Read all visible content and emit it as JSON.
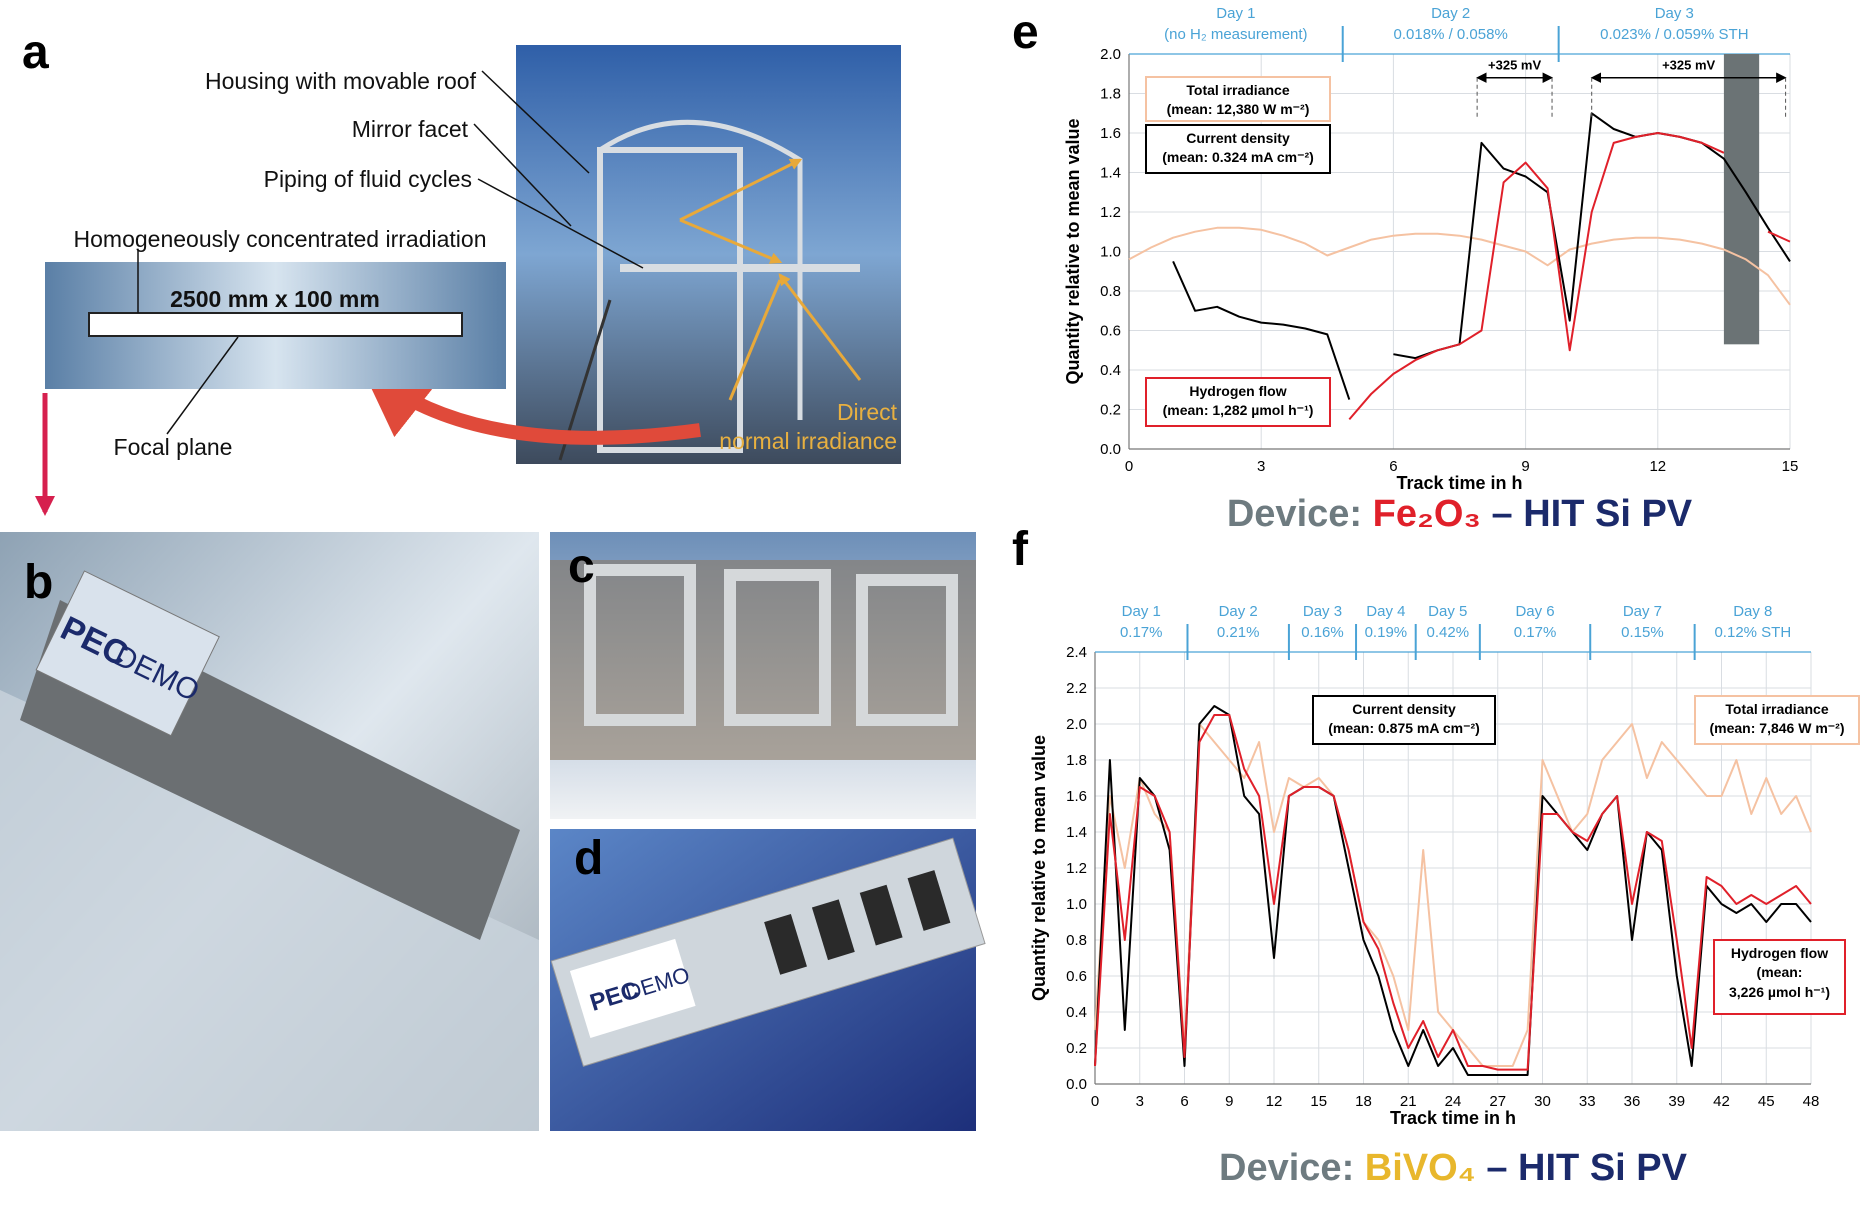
{
  "panels": {
    "a": {
      "label": "a",
      "housing": "Housing with movable roof",
      "mirror": "Mirror facet",
      "piping": "Piping of fluid cycles",
      "irradiation": "Homogeneously concentrated irradiation",
      "size": "2500 mm x 100 mm",
      "focal": "Focal plane",
      "direct": "Direct",
      "normal": "normal irradiance"
    },
    "b": {
      "label": "b",
      "sign": [
        "PEC",
        "DEMO"
      ]
    },
    "c": {
      "label": "c"
    },
    "d": {
      "label": "d",
      "sign": [
        "PEC",
        "DEMO"
      ]
    },
    "e": {
      "label": "e"
    },
    "f": {
      "label": "f"
    }
  },
  "chart_data": [
    {
      "type": "line",
      "x_label": "Track time in h",
      "y_label": "Quantity relative to mean value",
      "xlim": [
        0,
        15
      ],
      "xticks": [
        0,
        3,
        6,
        9,
        12,
        15
      ],
      "ylim": [
        0,
        2.0
      ],
      "yticks": [
        {
          "value": 0,
          "label": "0.0"
        },
        {
          "value": 0.2,
          "label": "0.2"
        },
        {
          "value": 0.4,
          "label": "0.4"
        },
        {
          "value": 0.6,
          "label": "0.6"
        },
        {
          "value": 0.8,
          "label": "0.8"
        },
        {
          "value": 1.0,
          "label": "1.0"
        },
        {
          "value": 1.2,
          "label": "1.2"
        },
        {
          "value": 1.4,
          "label": "1.4"
        },
        {
          "value": 1.6,
          "label": "1.6"
        },
        {
          "value": 1.8,
          "label": "1.8"
        },
        {
          "value": 2.0,
          "label": "2.0"
        }
      ],
      "grid": true,
      "day_color": "#4aa3d6",
      "day_boundaries": [
        4.85,
        9.75
      ],
      "days": [
        {
          "label": "Day 1",
          "note": "(no H₂ measurement)"
        },
        {
          "label": "Day 2",
          "note": "0.018% / 0.058%"
        },
        {
          "label": "Day 3",
          "note": "0.023% / 0.059% STH"
        }
      ],
      "arrows": [
        {
          "label": "+325 mV",
          "x": [
            7.9,
            9.6
          ],
          "y": 1.88
        },
        {
          "label": "+325 mV",
          "x": [
            10.5,
            14.9
          ],
          "y": 1.88
        }
      ],
      "excluded": {
        "x": [
          13.5,
          14.3
        ],
        "y": [
          0.53,
          2.0
        ],
        "color": "#6b7375"
      },
      "device_label": [
        {
          "text": "Device: ",
          "color": "#6e7b80"
        },
        {
          "text": "Fe₂O₃",
          "color": "#e0202a"
        },
        {
          "text": " – HIT Si PV",
          "color": "#1b2a6b"
        }
      ],
      "x": [
        0,
        0.5,
        1,
        1.5,
        2,
        2.5,
        3,
        3.5,
        4,
        4.5,
        5,
        5.5,
        6,
        6.5,
        7,
        7.5,
        8,
        8.5,
        9,
        9.5,
        10,
        10.5,
        11,
        11.5,
        12,
        12.5,
        13,
        13.5,
        14,
        14.5,
        15
      ],
      "series": [
        {
          "name": "Total irradiance",
          "legend_lines": [
            "(mean: 12,380 W m⁻²)"
          ],
          "color": "#f5c2a2",
          "values": [
            0.96,
            1.02,
            1.07,
            1.1,
            1.12,
            1.12,
            1.11,
            1.08,
            1.04,
            0.98,
            1.02,
            1.06,
            1.08,
            1.09,
            1.09,
            1.08,
            1.06,
            1.03,
            1.0,
            0.93,
            1.01,
            1.04,
            1.06,
            1.07,
            1.07,
            1.06,
            1.04,
            1.01,
            0.96,
            0.88,
            0.73
          ]
        },
        {
          "name": "Current density",
          "legend_lines": [
            "(mean: 0.324 mA cm⁻²)"
          ],
          "color": "#000000",
          "values": [
            null,
            null,
            0.95,
            0.7,
            0.72,
            0.67,
            0.64,
            0.63,
            0.61,
            0.58,
            0.25,
            null,
            0.48,
            0.46,
            0.5,
            0.53,
            1.55,
            1.42,
            1.38,
            1.3,
            0.65,
            1.7,
            1.62,
            1.58,
            1.6,
            1.58,
            1.55,
            1.47,
            1.3,
            1.12,
            0.95
          ]
        },
        {
          "name": "Hydrogen flow",
          "legend_lines": [
            "(mean: 1,282 µmol h⁻¹)"
          ],
          "color": "#e0202a",
          "values": [
            null,
            null,
            null,
            null,
            null,
            null,
            null,
            null,
            null,
            null,
            0.15,
            0.28,
            0.38,
            0.45,
            0.5,
            0.53,
            0.6,
            1.35,
            1.45,
            1.32,
            0.5,
            1.2,
            1.55,
            1.58,
            1.6,
            1.58,
            1.55,
            1.5,
            null,
            1.1,
            1.05
          ]
        }
      ]
    },
    {
      "type": "line",
      "x_label": "Track time in h",
      "y_label": "Quantity relative to mean value",
      "xlim": [
        0,
        48
      ],
      "xticks": [
        0,
        3,
        6,
        9,
        12,
        15,
        18,
        21,
        24,
        27,
        30,
        33,
        36,
        39,
        42,
        45,
        48
      ],
      "ylim": [
        0,
        2.4
      ],
      "yticks": [
        {
          "value": 0,
          "label": "0.0"
        },
        {
          "value": 0.2,
          "label": "0.2"
        },
        {
          "value": 0.4,
          "label": "0.4"
        },
        {
          "value": 0.6,
          "label": "0.6"
        },
        {
          "value": 0.8,
          "label": "0.8"
        },
        {
          "value": 1.0,
          "label": "1.0"
        },
        {
          "value": 1.2,
          "label": "1.2"
        },
        {
          "value": 1.4,
          "label": "1.4"
        },
        {
          "value": 1.6,
          "label": "1.6"
        },
        {
          "value": 1.8,
          "label": "1.8"
        },
        {
          "value": 2.0,
          "label": "2.0"
        },
        {
          "value": 2.2,
          "label": "2.2"
        },
        {
          "value": 2.4,
          "label": "2.4"
        }
      ],
      "grid": true,
      "day_color": "#4aa3d6",
      "day_boundaries": [
        6.2,
        13,
        17.5,
        21.5,
        25.8,
        33.2,
        40.2
      ],
      "days": [
        {
          "label": "Day 1",
          "note": "0.17%"
        },
        {
          "label": "Day 2",
          "note": "0.21%"
        },
        {
          "label": "Day 3",
          "note": "0.16%"
        },
        {
          "label": "Day 4",
          "note": "0.19%"
        },
        {
          "label": "Day 5",
          "note": "0.42%"
        },
        {
          "label": "Day 6",
          "note": "0.17%"
        },
        {
          "label": "Day 7",
          "note": "0.15%"
        },
        {
          "label": "Day 8",
          "note": "0.12% STH"
        }
      ],
      "device_label": [
        {
          "text": "Device: ",
          "color": "#6e7b80"
        },
        {
          "text": "BiVO₄",
          "color": "#e8b72c"
        },
        {
          "text": " – HIT Si PV",
          "color": "#1b2a6b"
        }
      ],
      "x": [
        0,
        1,
        2,
        3,
        4,
        5,
        6,
        7,
        8,
        9,
        10,
        11,
        12,
        13,
        14,
        15,
        16,
        17,
        18,
        19,
        20,
        21,
        22,
        23,
        24,
        25,
        26,
        27,
        28,
        29,
        30,
        31,
        32,
        33,
        34,
        35,
        36,
        37,
        38,
        39,
        40,
        41,
        42,
        43,
        44,
        45,
        46,
        47,
        48
      ],
      "series": [
        {
          "name": "Total irradiance",
          "legend_lines": [
            "(mean: 7,846 W m⁻²)"
          ],
          "color": "#f5c2a2",
          "values": [
            0.3,
            1.6,
            1.2,
            1.7,
            1.5,
            1.4,
            0.2,
            2.0,
            1.9,
            1.8,
            1.7,
            1.9,
            1.4,
            1.7,
            1.65,
            1.7,
            1.6,
            1.3,
            0.9,
            0.8,
            0.6,
            0.3,
            1.3,
            0.4,
            0.3,
            0.2,
            0.1,
            0.1,
            0.1,
            0.3,
            1.8,
            1.6,
            1.4,
            1.5,
            1.8,
            1.9,
            2.0,
            1.7,
            1.9,
            1.8,
            1.7,
            1.6,
            1.6,
            1.8,
            1.5,
            1.7,
            1.5,
            1.6,
            1.4
          ]
        },
        {
          "name": "Current density",
          "legend_lines": [
            "(mean: 0.875 mA cm⁻²)"
          ],
          "color": "#000000",
          "values": [
            0.1,
            1.8,
            0.3,
            1.7,
            1.6,
            1.3,
            0.1,
            2.0,
            2.1,
            2.05,
            1.6,
            1.5,
            0.7,
            1.6,
            1.65,
            1.65,
            1.6,
            1.2,
            0.8,
            0.6,
            0.3,
            0.1,
            0.3,
            0.1,
            0.2,
            0.05,
            0.05,
            0.05,
            0.05,
            0.05,
            1.6,
            1.5,
            1.4,
            1.3,
            1.5,
            1.6,
            0.8,
            1.4,
            1.3,
            0.6,
            0.1,
            1.1,
            1.0,
            0.95,
            1.0,
            0.9,
            1.0,
            1.0,
            0.9
          ]
        },
        {
          "name": "Hydrogen flow",
          "legend_lines": [
            "(mean:",
            "3,226 µmol h⁻¹)"
          ],
          "color": "#e0202a",
          "values": [
            0.1,
            1.5,
            0.8,
            1.65,
            1.6,
            1.4,
            0.15,
            1.9,
            2.05,
            2.05,
            1.75,
            1.6,
            1.0,
            1.6,
            1.65,
            1.65,
            1.6,
            1.3,
            0.9,
            0.75,
            0.45,
            0.2,
            0.35,
            0.15,
            0.3,
            0.1,
            0.1,
            0.08,
            0.08,
            0.08,
            1.5,
            1.5,
            1.4,
            1.35,
            1.5,
            1.6,
            1.0,
            1.4,
            1.35,
            0.8,
            0.2,
            1.15,
            1.1,
            1.0,
            1.05,
            1.0,
            1.05,
            1.1,
            1.0
          ]
        }
      ]
    }
  ]
}
